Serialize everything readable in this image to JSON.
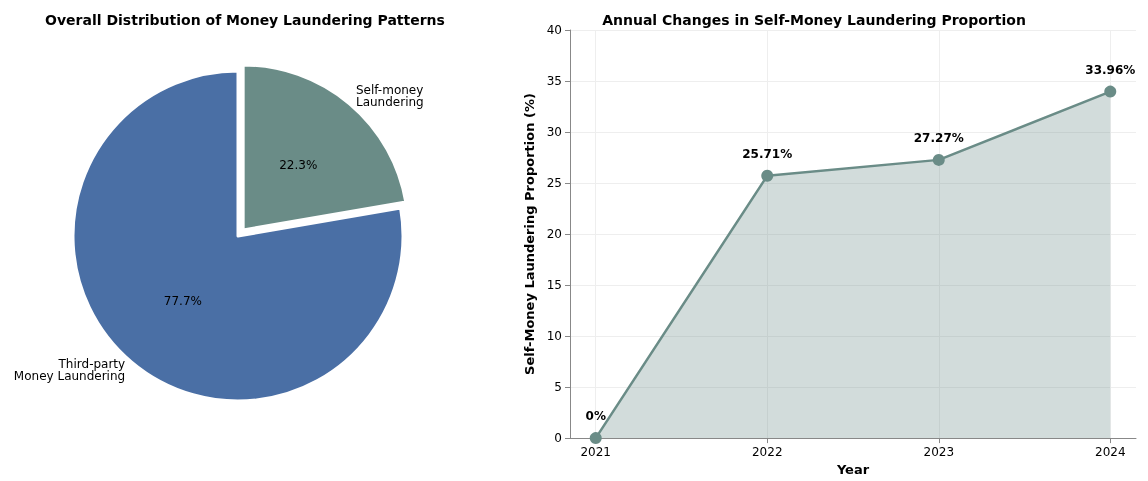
{
  "chart_data": [
    {
      "type": "pie",
      "title": "Overall Distribution of Money Laundering Patterns",
      "categories": [
        "Third-party\nMoney Laundering",
        "Self-money\nLaundering"
      ],
      "values": [
        77.7,
        22.3
      ],
      "colors": [
        "#4a6fa5",
        "#6a8c87"
      ],
      "value_labels": [
        "77.7%",
        "22.3%"
      ],
      "legend": false
    },
    {
      "type": "area",
      "title": "Annual Changes in Self-Money Laundering Proportion",
      "xlabel": "Year",
      "ylabel": "Self-Money Laundering Proportion (%)",
      "x": [
        2021,
        2022,
        2023,
        2024
      ],
      "xlim": [
        2020.85,
        2024.15
      ],
      "xticks": [
        2021,
        2022,
        2023,
        2024
      ],
      "ylim": [
        0,
        40
      ],
      "yticks": [
        0,
        5,
        10,
        15,
        20,
        25,
        30,
        35,
        40
      ],
      "series": [
        {
          "color": "#6a8c87",
          "values": [
            0,
            25.71,
            27.27,
            33.96
          ],
          "value_labels": [
            "0%",
            "25.71%",
            "27.27%",
            "33.96%"
          ]
        }
      ],
      "marker": "circle",
      "grid": true,
      "legend": false
    }
  ]
}
